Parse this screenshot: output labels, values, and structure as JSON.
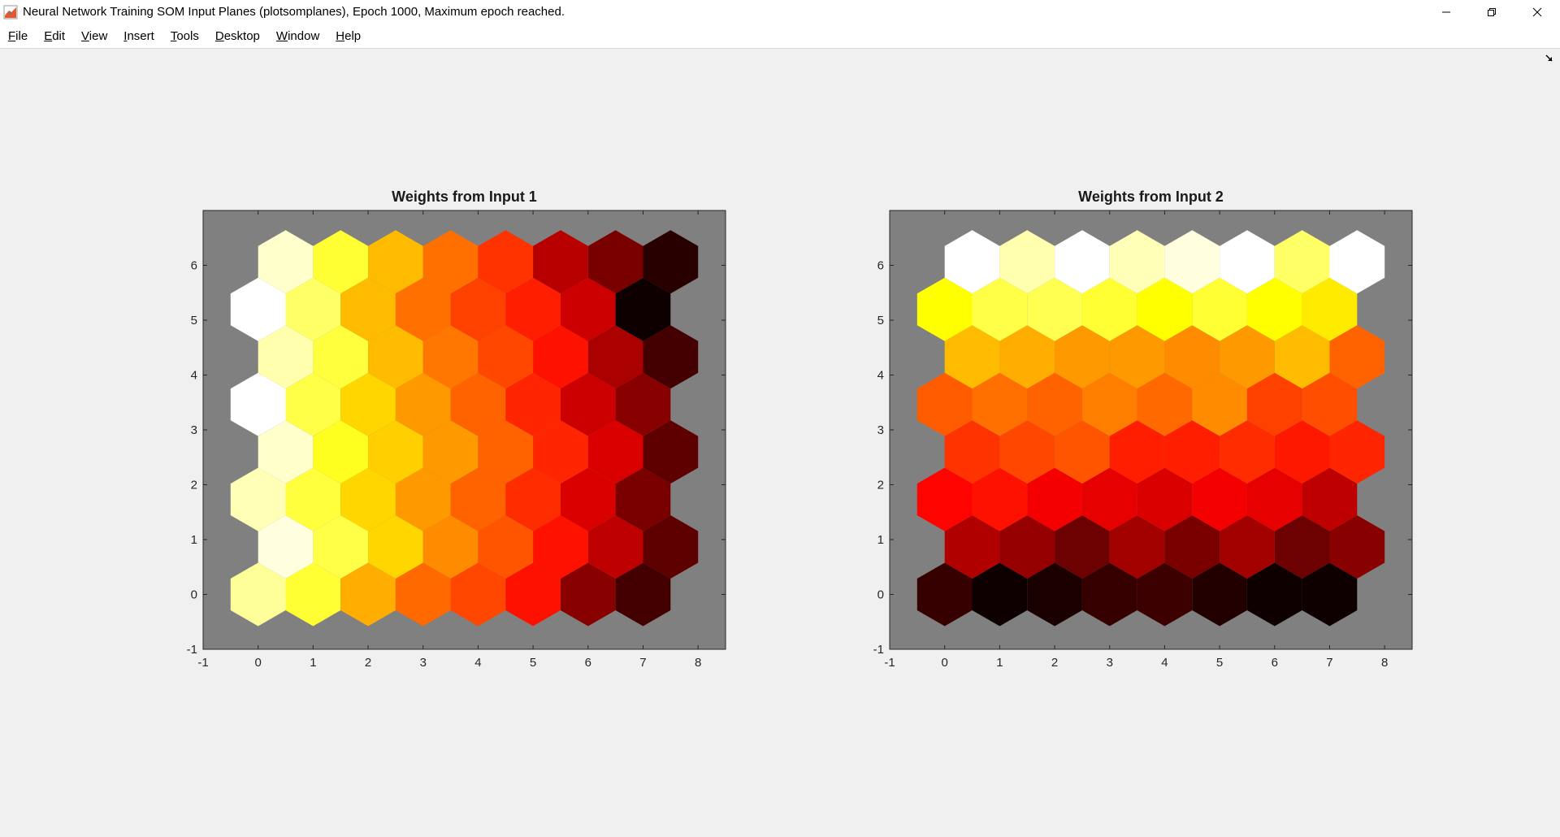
{
  "window": {
    "title": "Neural Network Training SOM Input Planes (plotsomplanes), Epoch 1000, Maximum epoch reached.",
    "icon": "matlab-icon",
    "controls": [
      "minimize-icon",
      "restore-icon",
      "close-icon"
    ]
  },
  "menubar": {
    "items": [
      {
        "accel": "F",
        "rest": "ile"
      },
      {
        "accel": "E",
        "rest": "dit"
      },
      {
        "accel": "V",
        "rest": "iew"
      },
      {
        "accel": "I",
        "rest": "nsert"
      },
      {
        "accel": "T",
        "rest": "ools"
      },
      {
        "accel": "D",
        "rest": "esktop"
      },
      {
        "accel": "W",
        "rest": "indow"
      },
      {
        "accel": "H",
        "rest": "elp"
      }
    ],
    "dock_icon": "dock-arrow-icon"
  },
  "chart_data": [
    {
      "type": "heatmap",
      "title": "Weights from Input 1",
      "xlim": [
        -1,
        8.5
      ],
      "ylim": [
        -1,
        7
      ],
      "xticks": [
        "-1",
        "0",
        "1",
        "2",
        "3",
        "4",
        "5",
        "6",
        "7",
        "8"
      ],
      "yticks": [
        "-1",
        "0",
        "1",
        "2",
        "3",
        "4",
        "5",
        "6"
      ],
      "colormap": "hot",
      "background": "#808080",
      "grid": "hexagonal 8x8",
      "values": [
        [
          0.9,
          0.8,
          0.63,
          0.53,
          0.48,
          0.4,
          0.2,
          0.1
        ],
        [
          0.97,
          0.82,
          0.69,
          0.58,
          0.5,
          0.4,
          0.28,
          0.14
        ],
        [
          0.93,
          0.81,
          0.69,
          0.6,
          0.52,
          0.44,
          0.32,
          0.18
        ],
        [
          0.95,
          0.78,
          0.68,
          0.6,
          0.52,
          0.43,
          0.32,
          0.14
        ],
        [
          1.0,
          0.82,
          0.69,
          0.6,
          0.52,
          0.43,
          0.3,
          0.2
        ],
        [
          0.92,
          0.81,
          0.65,
          0.55,
          0.48,
          0.4,
          0.25,
          0.1
        ],
        [
          1.0,
          0.85,
          0.65,
          0.54,
          0.47,
          0.42,
          0.3,
          0.02
        ],
        [
          0.95,
          0.8,
          0.65,
          0.54,
          0.45,
          0.27,
          0.18,
          0.06
        ]
      ]
    },
    {
      "type": "heatmap",
      "title": "Weights from Input 2",
      "xlim": [
        -1,
        8.5
      ],
      "ylim": [
        -1,
        7
      ],
      "xticks": [
        "-1",
        "0",
        "1",
        "2",
        "3",
        "4",
        "5",
        "6",
        "7",
        "8"
      ],
      "yticks": [
        "-1",
        "0",
        "1",
        "2",
        "3",
        "4",
        "5",
        "6"
      ],
      "colormap": "hot",
      "background": "#808080",
      "grid": "hexagonal 8x8",
      "values": [
        [
          0.08,
          0.02,
          0.04,
          0.08,
          0.09,
          0.05,
          0.02,
          0.02
        ],
        [
          0.26,
          0.22,
          0.16,
          0.24,
          0.18,
          0.24,
          0.16,
          0.2
        ],
        [
          0.38,
          0.4,
          0.36,
          0.34,
          0.32,
          0.36,
          0.34,
          0.28
        ],
        [
          0.45,
          0.48,
          0.5,
          0.42,
          0.42,
          0.44,
          0.41,
          0.43
        ],
        [
          0.51,
          0.54,
          0.52,
          0.56,
          0.53,
          0.58,
          0.47,
          0.49
        ],
        [
          0.65,
          0.63,
          0.6,
          0.6,
          0.58,
          0.6,
          0.65,
          0.52
        ],
        [
          0.75,
          0.82,
          0.83,
          0.8,
          0.75,
          0.8,
          0.75,
          0.72
        ],
        [
          1.0,
          0.92,
          1.0,
          0.93,
          0.97,
          1.0,
          0.85,
          1.0
        ]
      ]
    }
  ]
}
